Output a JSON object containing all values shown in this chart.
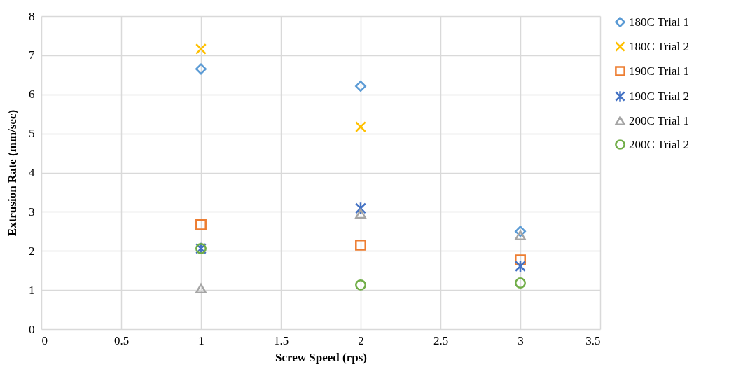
{
  "chart_data": {
    "type": "scatter",
    "xlabel": "Screw Speed (rps)",
    "ylabel": "Extrusion Rate (mm/sec)",
    "xlim": [
      0,
      3.5
    ],
    "xticks": [
      0,
      0.5,
      1,
      1.5,
      2,
      2.5,
      3,
      3.5
    ],
    "ylim": [
      0,
      8
    ],
    "yticks": [
      0,
      1,
      2,
      3,
      4,
      5,
      6,
      7,
      8
    ],
    "grid": true,
    "legend": "right",
    "x": [
      1,
      2,
      3
    ],
    "series": [
      {
        "name": "180C Trial 1",
        "color": "#5b9bd5",
        "marker": "diamond",
        "values": [
          6.65,
          6.21,
          2.5
        ]
      },
      {
        "name": "180C Trial 2",
        "color": "#ffc000",
        "marker": "cross",
        "values": [
          7.16,
          5.17,
          null
        ]
      },
      {
        "name": "190C Trial 1",
        "color": "#ed7d31",
        "marker": "square",
        "values": [
          2.67,
          2.15,
          1.77
        ]
      },
      {
        "name": "190C Trial 2",
        "color": "#4472c4",
        "values": [
          2.06,
          3.09,
          1.61
        ]
      },
      {
        "name": "200C Trial 1",
        "color": "#a5a5a5",
        "marker": "triangle",
        "values": [
          1.04,
          2.95,
          2.4
        ]
      },
      {
        "name": "200C Trial 2",
        "color": "#70ad47",
        "marker": "circle",
        "values": [
          2.06,
          1.13,
          1.18
        ]
      }
    ]
  }
}
